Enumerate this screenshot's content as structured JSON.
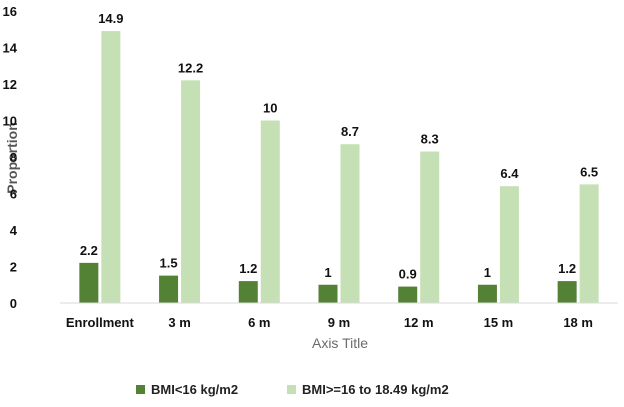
{
  "chart_data": {
    "type": "bar",
    "title": "",
    "xlabel": "Axis Title",
    "ylabel": "Proportion",
    "ylim": [
      0,
      16
    ],
    "yticks": [
      0,
      2,
      4,
      6,
      8,
      10,
      12,
      14,
      16
    ],
    "grid": false,
    "legend_position": "bottom",
    "categories": [
      "Enrollment",
      "3 m",
      "6 m",
      "9 m",
      "12 m",
      "15 m",
      "18 m"
    ],
    "series": [
      {
        "name": "BMI<16 kg/m2",
        "color": "#548235",
        "values": [
          2.2,
          1.5,
          1.2,
          1,
          0.9,
          1,
          1.2
        ],
        "labels": [
          "2.2",
          "1.5",
          "1.2",
          "1",
          "0.9",
          "1",
          "1.2"
        ]
      },
      {
        "name": "BMI>=16 to 18.49 kg/m2",
        "color": "#c5e0b4",
        "values": [
          14.9,
          12.2,
          10,
          8.7,
          8.3,
          6.4,
          6.5
        ],
        "labels": [
          "14.9",
          "12.2",
          "10",
          "8.7",
          "8.3",
          "6.4",
          "6.5"
        ]
      }
    ]
  }
}
